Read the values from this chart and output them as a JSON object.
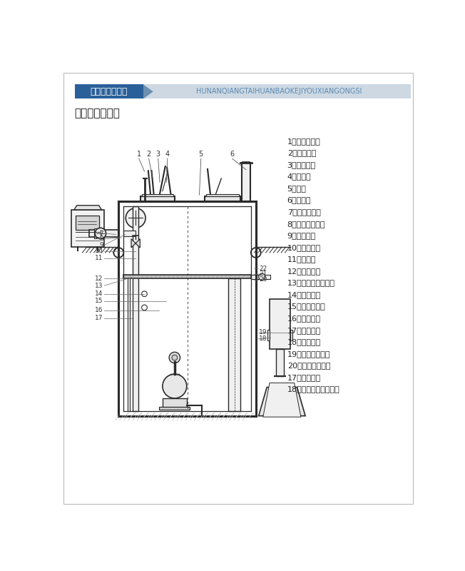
{
  "title_bar_text": "一体化预制泵站",
  "title_bar_subtitle": "HUNANQIANGTAIHUANBAOKEJIYOUXIANGONGSI",
  "section_title": "一体化泵站安装",
  "background_color": "#ffffff",
  "title_bar_bg": "#2a6099",
  "title_bar_subtitle_bg": "#cdd8e3",
  "legend_items": [
    "1、水泵控制柜",
    "2、爬梯扶手",
    "3、安全格栅",
    "4、气弹簧",
    "5、盖板",
    "6、排气孔",
    "7、电缆穿线孔",
    "8、出口柔性接头",
    "9、出水管道",
    "10、手动闸阀",
    "11、止回阀",
    "12、检修平台",
    "13、水泵导轨及爬梯",
    "14、液位浮球",
    "15、潜水排污泵",
    "16、耦合底座",
    "17、智能底部",
    "18、进水管道",
    "19、进口柔性接头",
    "20、固定辅助格栅",
    "17、粉碎格栅",
    "18、粉碎格栅安装系统"
  ],
  "line_color": "#2a2a2a",
  "diagram_line_color": "#2a2a2a"
}
